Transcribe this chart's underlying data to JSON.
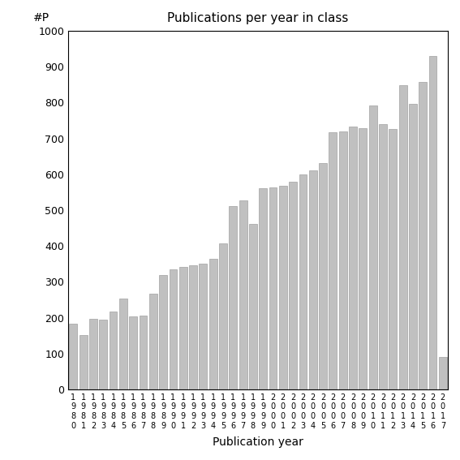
{
  "title": "Publications per year in class",
  "xlabel": "Publication year",
  "ylabel": "#P",
  "bar_color": "#c0c0c0",
  "bar_edgecolor": "#a0a0a0",
  "ylim": [
    0,
    1000
  ],
  "yticks": [
    0,
    100,
    200,
    300,
    400,
    500,
    600,
    700,
    800,
    900,
    1000
  ],
  "years": [
    1980,
    1981,
    1982,
    1983,
    1984,
    1985,
    1986,
    1987,
    1988,
    1989,
    1990,
    1991,
    1992,
    1993,
    1994,
    1995,
    1996,
    1997,
    1998,
    1999,
    2000,
    2001,
    2002,
    2003,
    2004,
    2005,
    2006,
    2007,
    2008,
    2009,
    2010,
    2011,
    2012,
    2013,
    2014,
    2015,
    2016,
    2017
  ],
  "values": [
    183,
    152,
    197,
    194,
    218,
    254,
    203,
    205,
    267,
    320,
    335,
    342,
    346,
    351,
    365,
    407,
    511,
    527,
    461,
    561,
    563,
    569,
    580,
    600,
    610,
    632,
    718,
    719,
    733,
    729,
    791,
    741,
    727,
    849,
    797,
    857,
    929,
    90
  ]
}
